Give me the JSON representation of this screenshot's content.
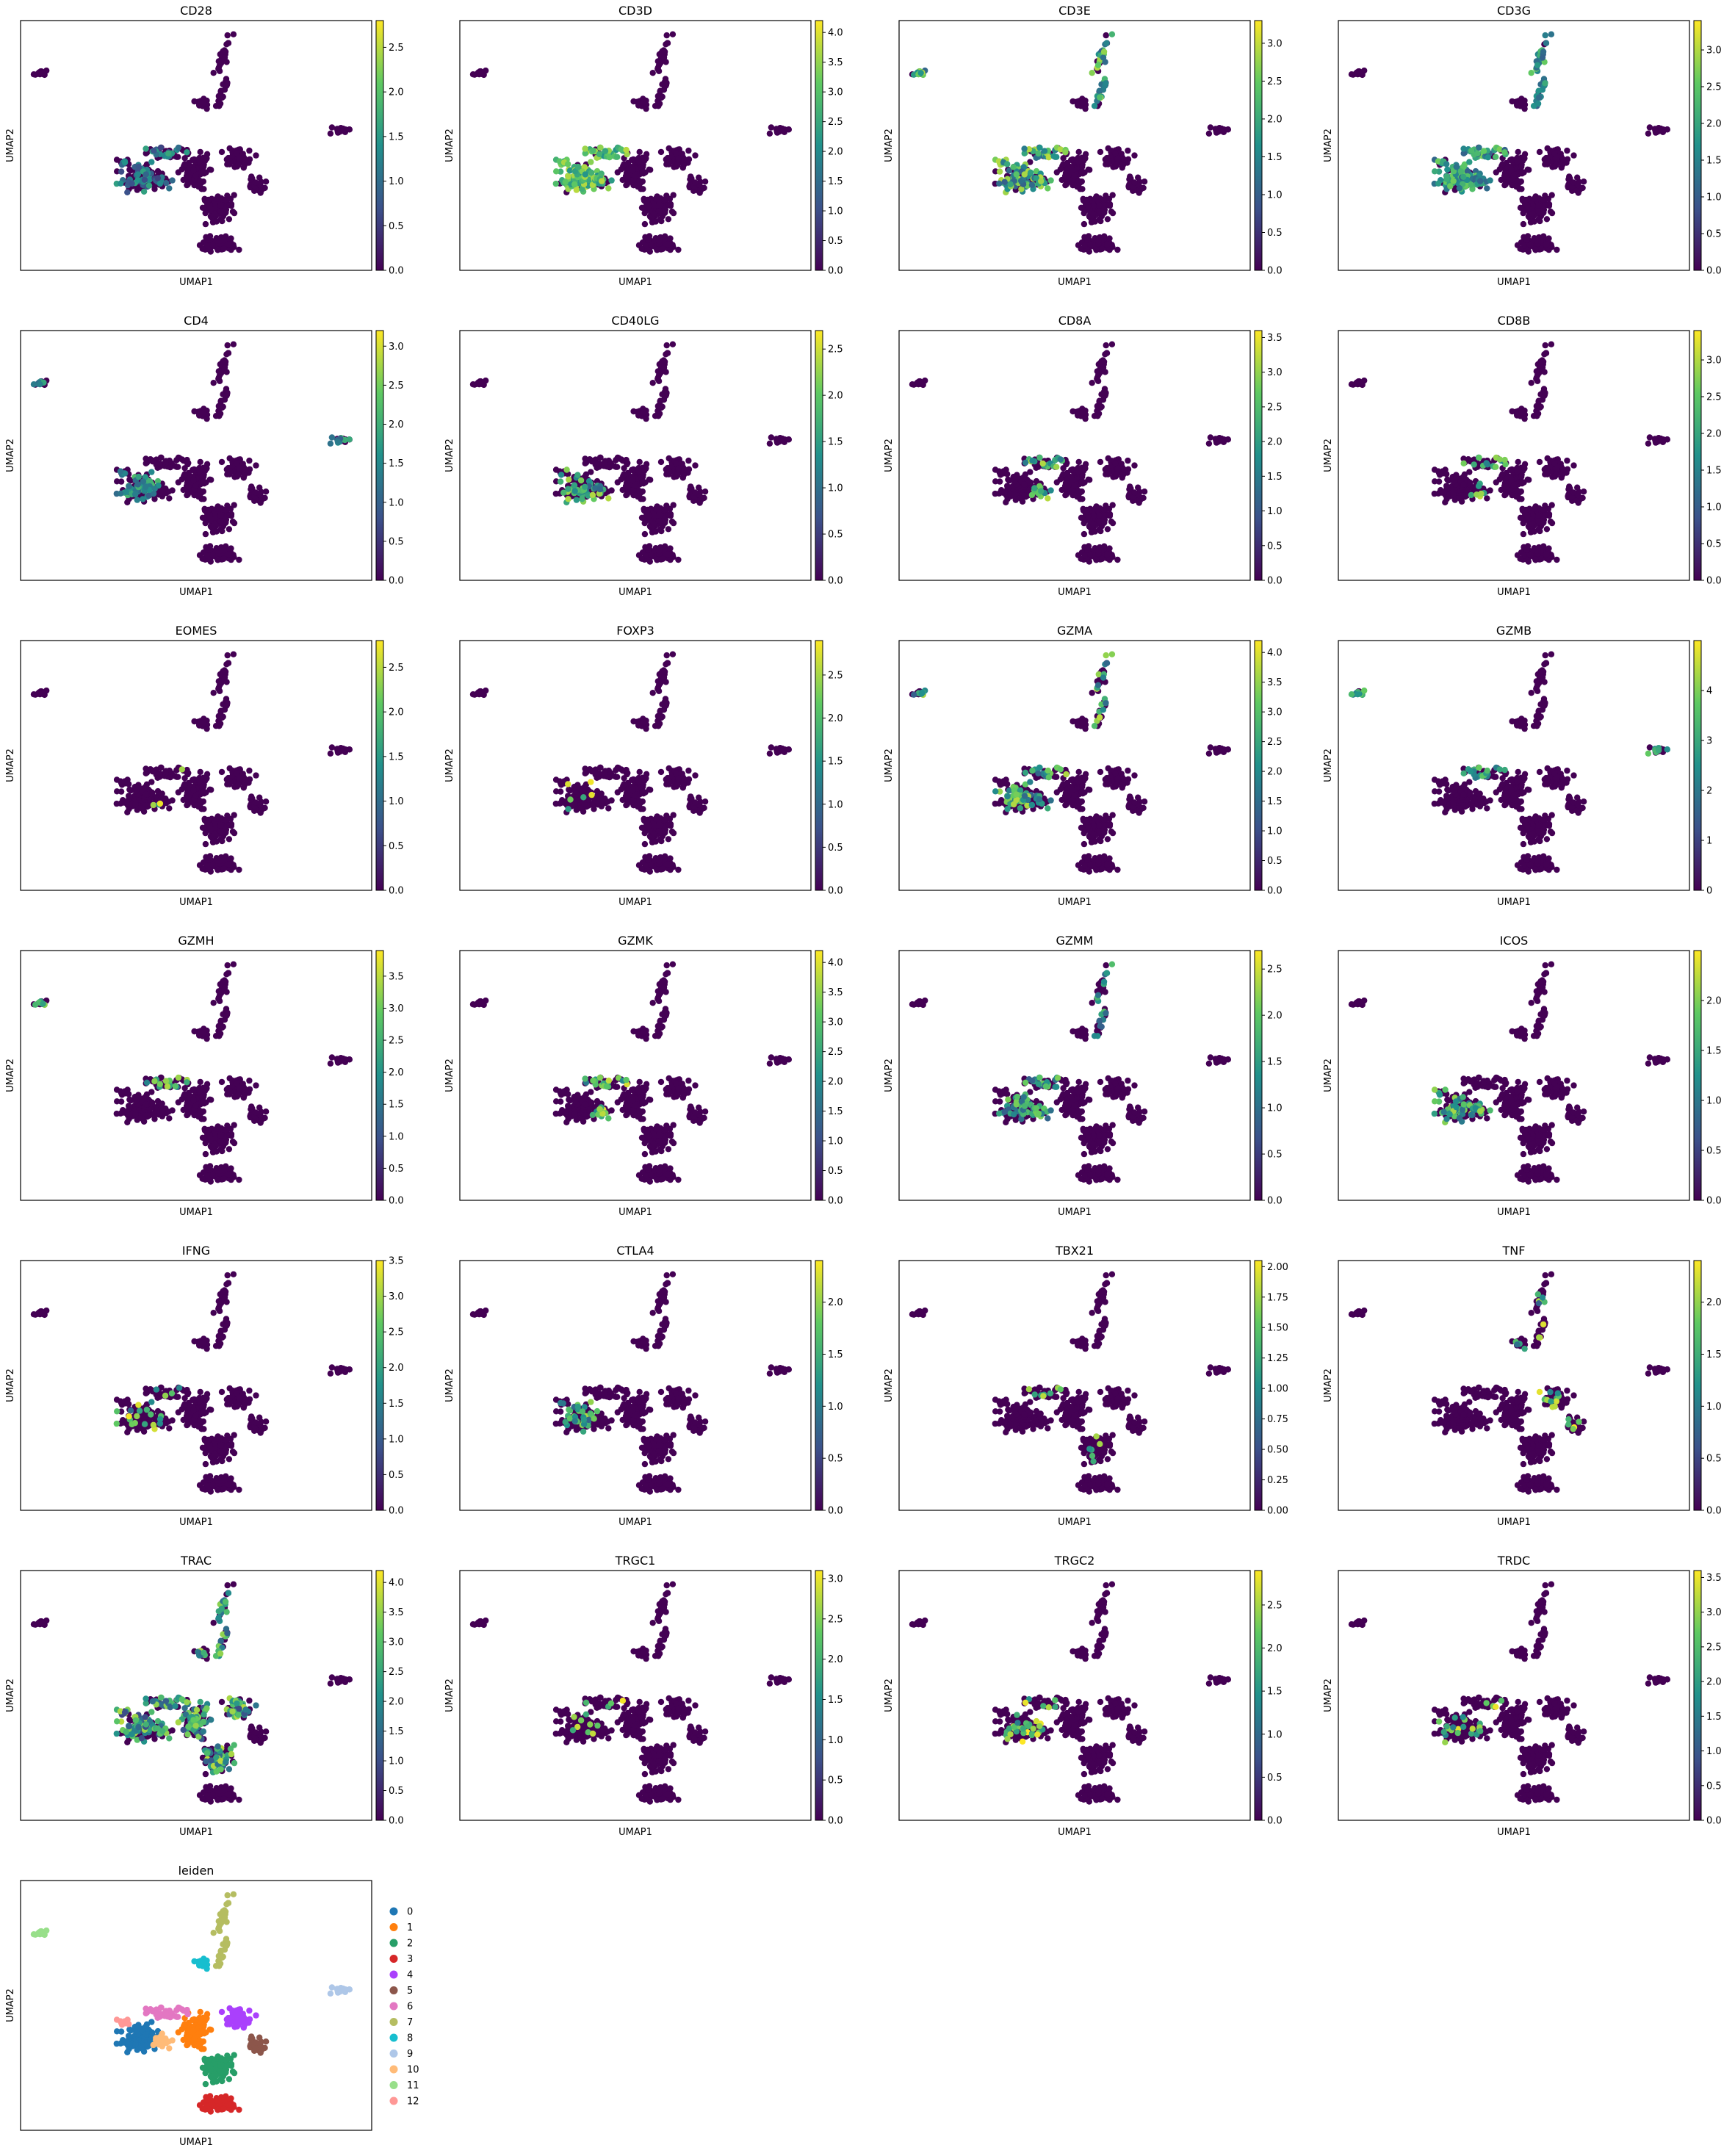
{
  "figure": {
    "xlabel": "UMAP1",
    "ylabel": "UMAP2",
    "colormap": "viridis",
    "colormap_stops": [
      "#440154",
      "#3b528b",
      "#21918c",
      "#5ec962",
      "#fde725"
    ],
    "background_point_color": "#440154"
  },
  "chart_data": [
    {
      "type": "scatter",
      "title": "CD28",
      "colorbar_ticks": [
        "0.0",
        "0.5",
        "1.0",
        "1.5",
        "2.0",
        "2.5"
      ],
      "vmax": 2.8,
      "expression": "cluster-1-6-10 mixed, low-moderate"
    },
    {
      "type": "scatter",
      "title": "CD3D",
      "colorbar_ticks": [
        "0.0",
        "0.5",
        "1.0",
        "1.5",
        "2.0",
        "2.5",
        "3.0",
        "3.5",
        "4.0"
      ],
      "vmax": 4.2,
      "expression": "cluster 1/6/10 high"
    },
    {
      "type": "scatter",
      "title": "CD3E",
      "colorbar_ticks": [
        "0.0",
        "0.5",
        "1.0",
        "1.5",
        "2.0",
        "2.5",
        "3.0"
      ],
      "vmax": 3.3,
      "expression": "cluster 1/6/10 mixed"
    },
    {
      "type": "scatter",
      "title": "CD3G",
      "colorbar_ticks": [
        "0.0",
        "0.5",
        "1.0",
        "1.5",
        "2.0",
        "2.5",
        "3.0"
      ],
      "vmax": 3.4,
      "expression": "cluster 1/6/10 moderate"
    },
    {
      "type": "scatter",
      "title": "CD4",
      "colorbar_ticks": [
        "0.0",
        "0.5",
        "1.0",
        "1.5",
        "2.0",
        "2.5",
        "3.0"
      ],
      "vmax": 3.2,
      "expression": "cluster 1 and islands moderate"
    },
    {
      "type": "scatter",
      "title": "CD40LG",
      "colorbar_ticks": [
        "0.0",
        "0.5",
        "1.0",
        "1.5",
        "2.0",
        "2.5"
      ],
      "vmax": 2.7,
      "expression": "cluster 1 sparse"
    },
    {
      "type": "scatter",
      "title": "CD8A",
      "colorbar_ticks": [
        "0.0",
        "0.5",
        "1.0",
        "1.5",
        "2.0",
        "2.5",
        "3.0",
        "3.5"
      ],
      "vmax": 3.6,
      "expression": "cluster 6 subset"
    },
    {
      "type": "scatter",
      "title": "CD8B",
      "colorbar_ticks": [
        "0.0",
        "0.5",
        "1.0",
        "1.5",
        "2.0",
        "2.5",
        "3.0"
      ],
      "vmax": 3.4,
      "expression": "cluster 6 subset"
    },
    {
      "type": "scatter",
      "title": "EOMES",
      "colorbar_ticks": [
        "0.0",
        "0.5",
        "1.0",
        "1.5",
        "2.0",
        "2.5"
      ],
      "vmax": 2.8,
      "expression": "very sparse"
    },
    {
      "type": "scatter",
      "title": "FOXP3",
      "colorbar_ticks": [
        "0.0",
        "0.5",
        "1.0",
        "1.5",
        "2.0",
        "2.5"
      ],
      "vmax": 2.9,
      "expression": "very sparse"
    },
    {
      "type": "scatter",
      "title": "GZMA",
      "colorbar_ticks": [
        "0.0",
        "0.5",
        "1.0",
        "1.5",
        "2.0",
        "2.5",
        "3.0",
        "3.5",
        "4.0"
      ],
      "vmax": 4.2,
      "expression": "cluster 6 high"
    },
    {
      "type": "scatter",
      "title": "GZMB",
      "colorbar_ticks": [
        "0",
        "1",
        "2",
        "3",
        "4"
      ],
      "vmax": 5.0,
      "expression": "top-left island high"
    },
    {
      "type": "scatter",
      "title": "GZMH",
      "colorbar_ticks": [
        "0.0",
        "0.5",
        "1.0",
        "1.5",
        "2.0",
        "2.5",
        "3.0",
        "3.5"
      ],
      "vmax": 3.9,
      "expression": "cluster 6 high"
    },
    {
      "type": "scatter",
      "title": "GZMK",
      "colorbar_ticks": [
        "0.0",
        "0.5",
        "1.0",
        "1.5",
        "2.0",
        "2.5",
        "3.0",
        "3.5",
        "4.0"
      ],
      "vmax": 4.2,
      "expression": "cluster 6 high"
    },
    {
      "type": "scatter",
      "title": "GZMM",
      "colorbar_ticks": [
        "0.0",
        "0.5",
        "1.0",
        "1.5",
        "2.0",
        "2.5"
      ],
      "vmax": 2.7,
      "expression": "cluster 1/6 mixed"
    },
    {
      "type": "scatter",
      "title": "ICOS",
      "colorbar_ticks": [
        "0.0",
        "0.5",
        "1.0",
        "1.5",
        "2.0"
      ],
      "vmax": 2.5,
      "expression": "cluster 1 moderate"
    },
    {
      "type": "scatter",
      "title": "IFNG",
      "colorbar_ticks": [
        "0.0",
        "0.5",
        "1.0",
        "1.5",
        "2.0",
        "2.5",
        "3.0",
        "3.5"
      ],
      "vmax": 3.5,
      "expression": "sparse"
    },
    {
      "type": "scatter",
      "title": "CTLA4",
      "colorbar_ticks": [
        "0.0",
        "0.5",
        "1.0",
        "1.5",
        "2.0"
      ],
      "vmax": 2.4,
      "expression": "cluster 1 sparse"
    },
    {
      "type": "scatter",
      "title": "TBX21",
      "colorbar_ticks": [
        "0.00",
        "0.25",
        "0.50",
        "0.75",
        "1.00",
        "1.25",
        "1.50",
        "1.75",
        "2.00"
      ],
      "vmax": 2.05,
      "expression": "very sparse"
    },
    {
      "type": "scatter",
      "title": "TNF",
      "colorbar_ticks": [
        "0.0",
        "0.5",
        "1.0",
        "1.5",
        "2.0"
      ],
      "vmax": 2.4,
      "expression": "arm and cluster 4 sparse"
    },
    {
      "type": "scatter",
      "title": "TRAC",
      "colorbar_ticks": [
        "0.0",
        "0.5",
        "1.0",
        "1.5",
        "2.0",
        "2.5",
        "3.0",
        "3.5",
        "4.0"
      ],
      "vmax": 4.2,
      "expression": "broad"
    },
    {
      "type": "scatter",
      "title": "TRGC1",
      "colorbar_ticks": [
        "0.0",
        "0.5",
        "1.0",
        "1.5",
        "2.0",
        "2.5",
        "3.0"
      ],
      "vmax": 3.1,
      "expression": "very sparse"
    },
    {
      "type": "scatter",
      "title": "TRGC2",
      "colorbar_ticks": [
        "0.0",
        "0.5",
        "1.0",
        "1.5",
        "2.0",
        "2.5"
      ],
      "vmax": 2.9,
      "expression": "cluster 1 sparse"
    },
    {
      "type": "scatter",
      "title": "TRDC",
      "colorbar_ticks": [
        "0.0",
        "0.5",
        "1.0",
        "1.5",
        "2.0",
        "2.5",
        "3.0",
        "3.5"
      ],
      "vmax": 3.6,
      "expression": "sparse"
    },
    {
      "type": "scatter",
      "title": "leiden",
      "categorical": true,
      "legend": [
        "0",
        "1",
        "2",
        "3",
        "4",
        "5",
        "6",
        "7",
        "8",
        "9",
        "10",
        "11",
        "12"
      ],
      "colors": [
        "#1f77b4",
        "#ff7f0e",
        "#279e68",
        "#d62728",
        "#aa40fc",
        "#8c564b",
        "#e377c2",
        "#b5bd61",
        "#17becf",
        "#aec7e8",
        "#ffbb78",
        "#98df8a",
        "#ff9896"
      ]
    }
  ]
}
